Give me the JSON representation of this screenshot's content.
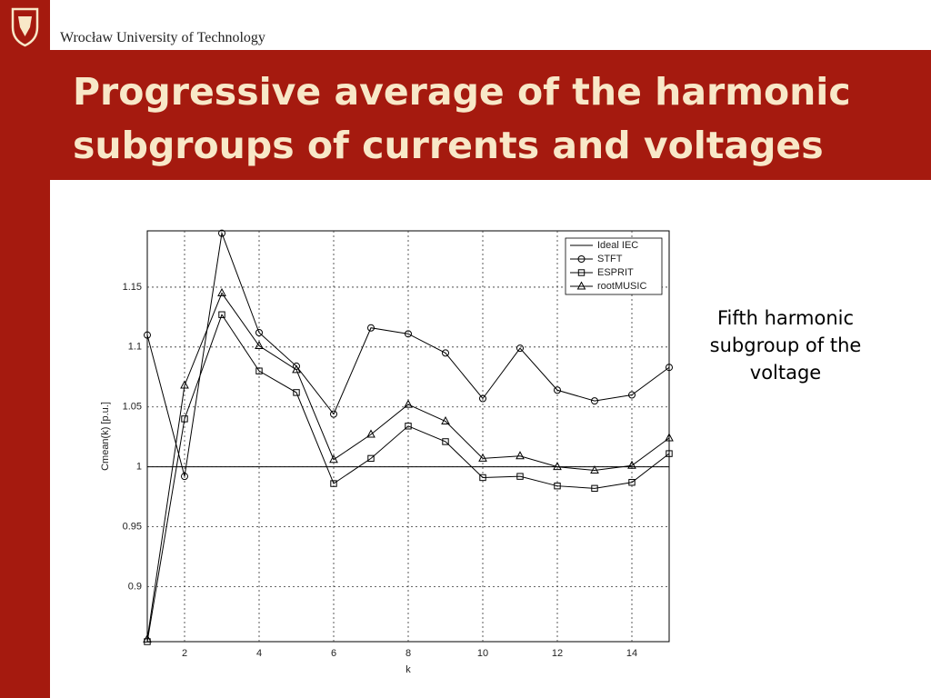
{
  "header": {
    "university": "Wrocław University of Technology",
    "title_lines": [
      "Progressive average of the harmonic",
      "subgroups of currents and voltages"
    ]
  },
  "note_lines": [
    "Fifth harmonic",
    "subgroup of the",
    "voltage"
  ],
  "chart_data": {
    "type": "line",
    "x_label": "k",
    "y_label": "Cmean(k) [p.u.]",
    "x": [
      1,
      2,
      3,
      4,
      5,
      6,
      7,
      8,
      9,
      10,
      11,
      12,
      13,
      14,
      15
    ],
    "xlim": [
      1,
      15
    ],
    "xticks": [
      2,
      4,
      6,
      8,
      10,
      12,
      14
    ],
    "ylim": [
      0.854,
      1.197
    ],
    "yticks": [
      0.9,
      0.95,
      1,
      1.05,
      1.1,
      1.15
    ],
    "grid": true,
    "legend": "top-right",
    "series": [
      {
        "name": "Ideal IEC",
        "color": "#000000",
        "marker": "none",
        "values": [
          1,
          1,
          1,
          1,
          1,
          1,
          1,
          1,
          1,
          1,
          1,
          1,
          1,
          1,
          1
        ]
      },
      {
        "name": "STFT",
        "color": "#000000",
        "marker": "circle",
        "values": [
          1.11,
          0.992,
          1.195,
          1.112,
          1.084,
          1.044,
          1.116,
          1.111,
          1.095,
          1.057,
          1.099,
          1.064,
          1.055,
          1.06,
          1.083
        ]
      },
      {
        "name": "ESPRIT",
        "color": "#000000",
        "marker": "square",
        "values": [
          0.854,
          1.04,
          1.127,
          1.08,
          1.062,
          0.986,
          1.007,
          1.034,
          1.021,
          0.991,
          0.992,
          0.984,
          0.982,
          0.987,
          1.011
        ]
      },
      {
        "name": "rootMUSIC",
        "color": "#000000",
        "marker": "triangle",
        "values": [
          0.856,
          1.068,
          1.145,
          1.101,
          1.081,
          1.006,
          1.027,
          1.052,
          1.038,
          1.007,
          1.009,
          1.0,
          0.997,
          1.001,
          1.024
        ]
      }
    ]
  }
}
